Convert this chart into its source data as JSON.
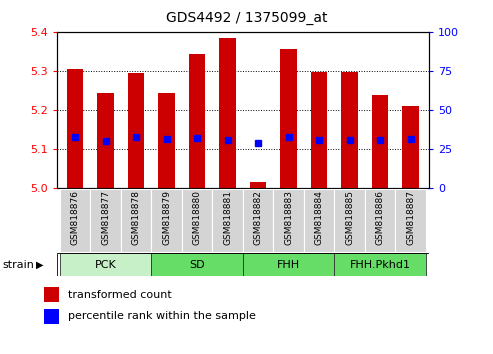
{
  "title": "GDS4492 / 1375099_at",
  "samples": [
    "GSM818876",
    "GSM818877",
    "GSM818878",
    "GSM818879",
    "GSM818880",
    "GSM818881",
    "GSM818882",
    "GSM818883",
    "GSM818884",
    "GSM818885",
    "GSM818886",
    "GSM818887"
  ],
  "red_values": [
    5.305,
    5.243,
    5.295,
    5.244,
    5.343,
    5.385,
    5.015,
    5.355,
    5.298,
    5.298,
    5.237,
    5.21
  ],
  "blue_values": [
    5.13,
    5.12,
    5.13,
    5.125,
    5.128,
    5.123,
    5.115,
    5.13,
    5.122,
    5.122,
    5.122,
    5.125
  ],
  "ylim_left": [
    5.0,
    5.4
  ],
  "ylim_right": [
    0,
    100
  ],
  "yticks_left": [
    5.0,
    5.1,
    5.2,
    5.3,
    5.4
  ],
  "yticks_right": [
    0,
    25,
    50,
    75,
    100
  ],
  "groups": [
    {
      "label": "PCK",
      "start": 0,
      "end": 2,
      "color": "#c8f0c8"
    },
    {
      "label": "SD",
      "start": 3,
      "end": 5,
      "color": "#66dd66"
    },
    {
      "label": "FHH",
      "start": 6,
      "end": 8,
      "color": "#66dd66"
    },
    {
      "label": "FHH.Pkhd1",
      "start": 9,
      "end": 11,
      "color": "#66dd66"
    }
  ],
  "bar_width": 0.55,
  "base_value": 5.0,
  "legend_red": "transformed count",
  "legend_blue": "percentile rank within the sample",
  "plot_bg_color": "#ffffff"
}
